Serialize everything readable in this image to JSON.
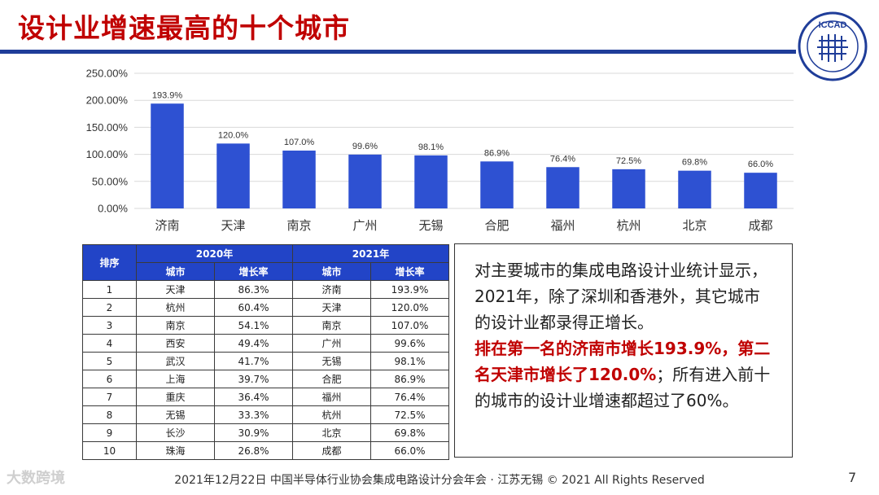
{
  "title": "设计业增速最高的十个城市",
  "logo": {
    "text": "ICCAD",
    "subtext": "中国半导体行业协会集成电路设计分会",
    "color": "#1f3d99"
  },
  "chart_data": {
    "type": "bar",
    "categories": [
      "济南",
      "天津",
      "南京",
      "广州",
      "无锡",
      "合肥",
      "福州",
      "杭州",
      "北京",
      "成都"
    ],
    "values": [
      193.9,
      120.0,
      107.0,
      99.6,
      98.1,
      86.9,
      76.4,
      72.5,
      69.8,
      66.0
    ],
    "data_labels": [
      "193.9%",
      "120.0%",
      "107.0%",
      "99.6%",
      "98.1%",
      "86.9%",
      "76.4%",
      "72.5%",
      "69.8%",
      "66.0%"
    ],
    "yticks": [
      "0.00%",
      "50.00%",
      "100.00%",
      "150.00%",
      "200.00%",
      "250.00%"
    ],
    "ylim": [
      0,
      250
    ],
    "grid": true,
    "bar_color": "#2e51d2"
  },
  "table": {
    "rank_header": "排序",
    "group_2020": "2020年",
    "group_2021": "2021年",
    "col_city": "城市",
    "col_growth": "增长率",
    "rows": [
      {
        "rank": "1",
        "city2020": "天津",
        "g2020": "86.3%",
        "city2021": "济南",
        "g2021": "193.9%"
      },
      {
        "rank": "2",
        "city2020": "杭州",
        "g2020": "60.4%",
        "city2021": "天津",
        "g2021": "120.0%"
      },
      {
        "rank": "3",
        "city2020": "南京",
        "g2020": "54.1%",
        "city2021": "南京",
        "g2021": "107.0%"
      },
      {
        "rank": "4",
        "city2020": "西安",
        "g2020": "49.4%",
        "city2021": "广州",
        "g2021": "99.6%"
      },
      {
        "rank": "5",
        "city2020": "武汉",
        "g2020": "41.7%",
        "city2021": "无锡",
        "g2021": "98.1%"
      },
      {
        "rank": "6",
        "city2020": "上海",
        "g2020": "39.7%",
        "city2021": "合肥",
        "g2021": "86.9%"
      },
      {
        "rank": "7",
        "city2020": "重庆",
        "g2020": "36.4%",
        "city2021": "福州",
        "g2021": "76.4%"
      },
      {
        "rank": "8",
        "city2020": "无锡",
        "g2020": "33.3%",
        "city2021": "杭州",
        "g2021": "72.5%"
      },
      {
        "rank": "9",
        "city2020": "长沙",
        "g2020": "30.9%",
        "city2021": "北京",
        "g2021": "69.8%"
      },
      {
        "rank": "10",
        "city2020": "珠海",
        "g2020": "26.8%",
        "city2021": "成都",
        "g2021": "66.0%"
      }
    ]
  },
  "summary": {
    "part1": "对主要城市的集成电路设计业统计显示，2021年，除了深圳和香港外，其它城市的设计业都录得正增长。",
    "highlight": "排在第一名的济南市增长193.9%，第二名天津市增长了120.0%",
    "part2": "；所有进入前十的城市的设计业增速都超过了60%。"
  },
  "footer": "2021年12月22日 中国半导体行业协会集成电路设计分会年会 · 江苏无锡 © 2021 All Rights Reserved",
  "page_number": "7",
  "watermark": "大数跨境"
}
